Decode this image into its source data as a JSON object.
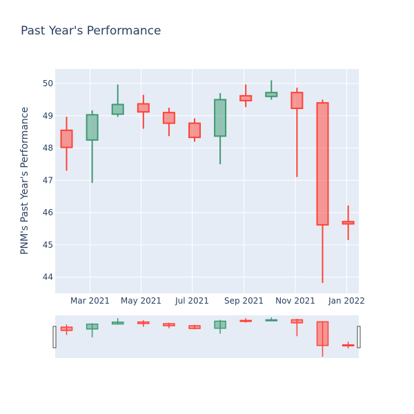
{
  "chart_data": {
    "type": "candlestick",
    "title": "Past Year's Performance",
    "ylabel": "PNM's Past Year's Performance",
    "xlabel": "",
    "ylim": [
      43.5,
      50.45
    ],
    "yticks": [
      44,
      45,
      46,
      47,
      48,
      49,
      50
    ],
    "xticks": [
      "Mar 2021",
      "May 2021",
      "Jul 2021",
      "Sep 2021",
      "Nov 2021",
      "Jan 2022"
    ],
    "grid": true,
    "rangeslider": true,
    "colors": {
      "increasing": "#3d9970",
      "decreasing": "#ff4136",
      "plot_bg": "#e5ecf6"
    },
    "candles": [
      {
        "date": "2021-01",
        "open": 48.55,
        "high": 48.97,
        "low": 47.3,
        "close": 48.02
      },
      {
        "date": "2021-02",
        "open": 48.25,
        "high": 49.17,
        "low": 46.92,
        "close": 49.03
      },
      {
        "date": "2021-03",
        "open": 49.05,
        "high": 49.97,
        "low": 48.97,
        "close": 49.35
      },
      {
        "date": "2021-04",
        "open": 49.37,
        "high": 49.65,
        "low": 48.6,
        "close": 49.12
      },
      {
        "date": "2021-05",
        "open": 49.1,
        "high": 49.25,
        "low": 48.37,
        "close": 48.77
      },
      {
        "date": "2021-06",
        "open": 48.77,
        "high": 48.92,
        "low": 48.2,
        "close": 48.33
      },
      {
        "date": "2021-07",
        "open": 48.37,
        "high": 49.7,
        "low": 47.5,
        "close": 49.5
      },
      {
        "date": "2021-08",
        "open": 49.62,
        "high": 49.97,
        "low": 49.27,
        "close": 49.47
      },
      {
        "date": "2021-09",
        "open": 49.6,
        "high": 50.1,
        "low": 49.5,
        "close": 49.72
      },
      {
        "date": "2021-10",
        "open": 49.72,
        "high": 49.87,
        "low": 47.1,
        "close": 49.23
      },
      {
        "date": "2021-11",
        "open": 49.4,
        "high": 49.5,
        "low": 43.82,
        "close": 45.62
      },
      {
        "date": "2021-12",
        "open": 45.72,
        "high": 46.22,
        "low": 45.15,
        "close": 45.65
      }
    ]
  }
}
